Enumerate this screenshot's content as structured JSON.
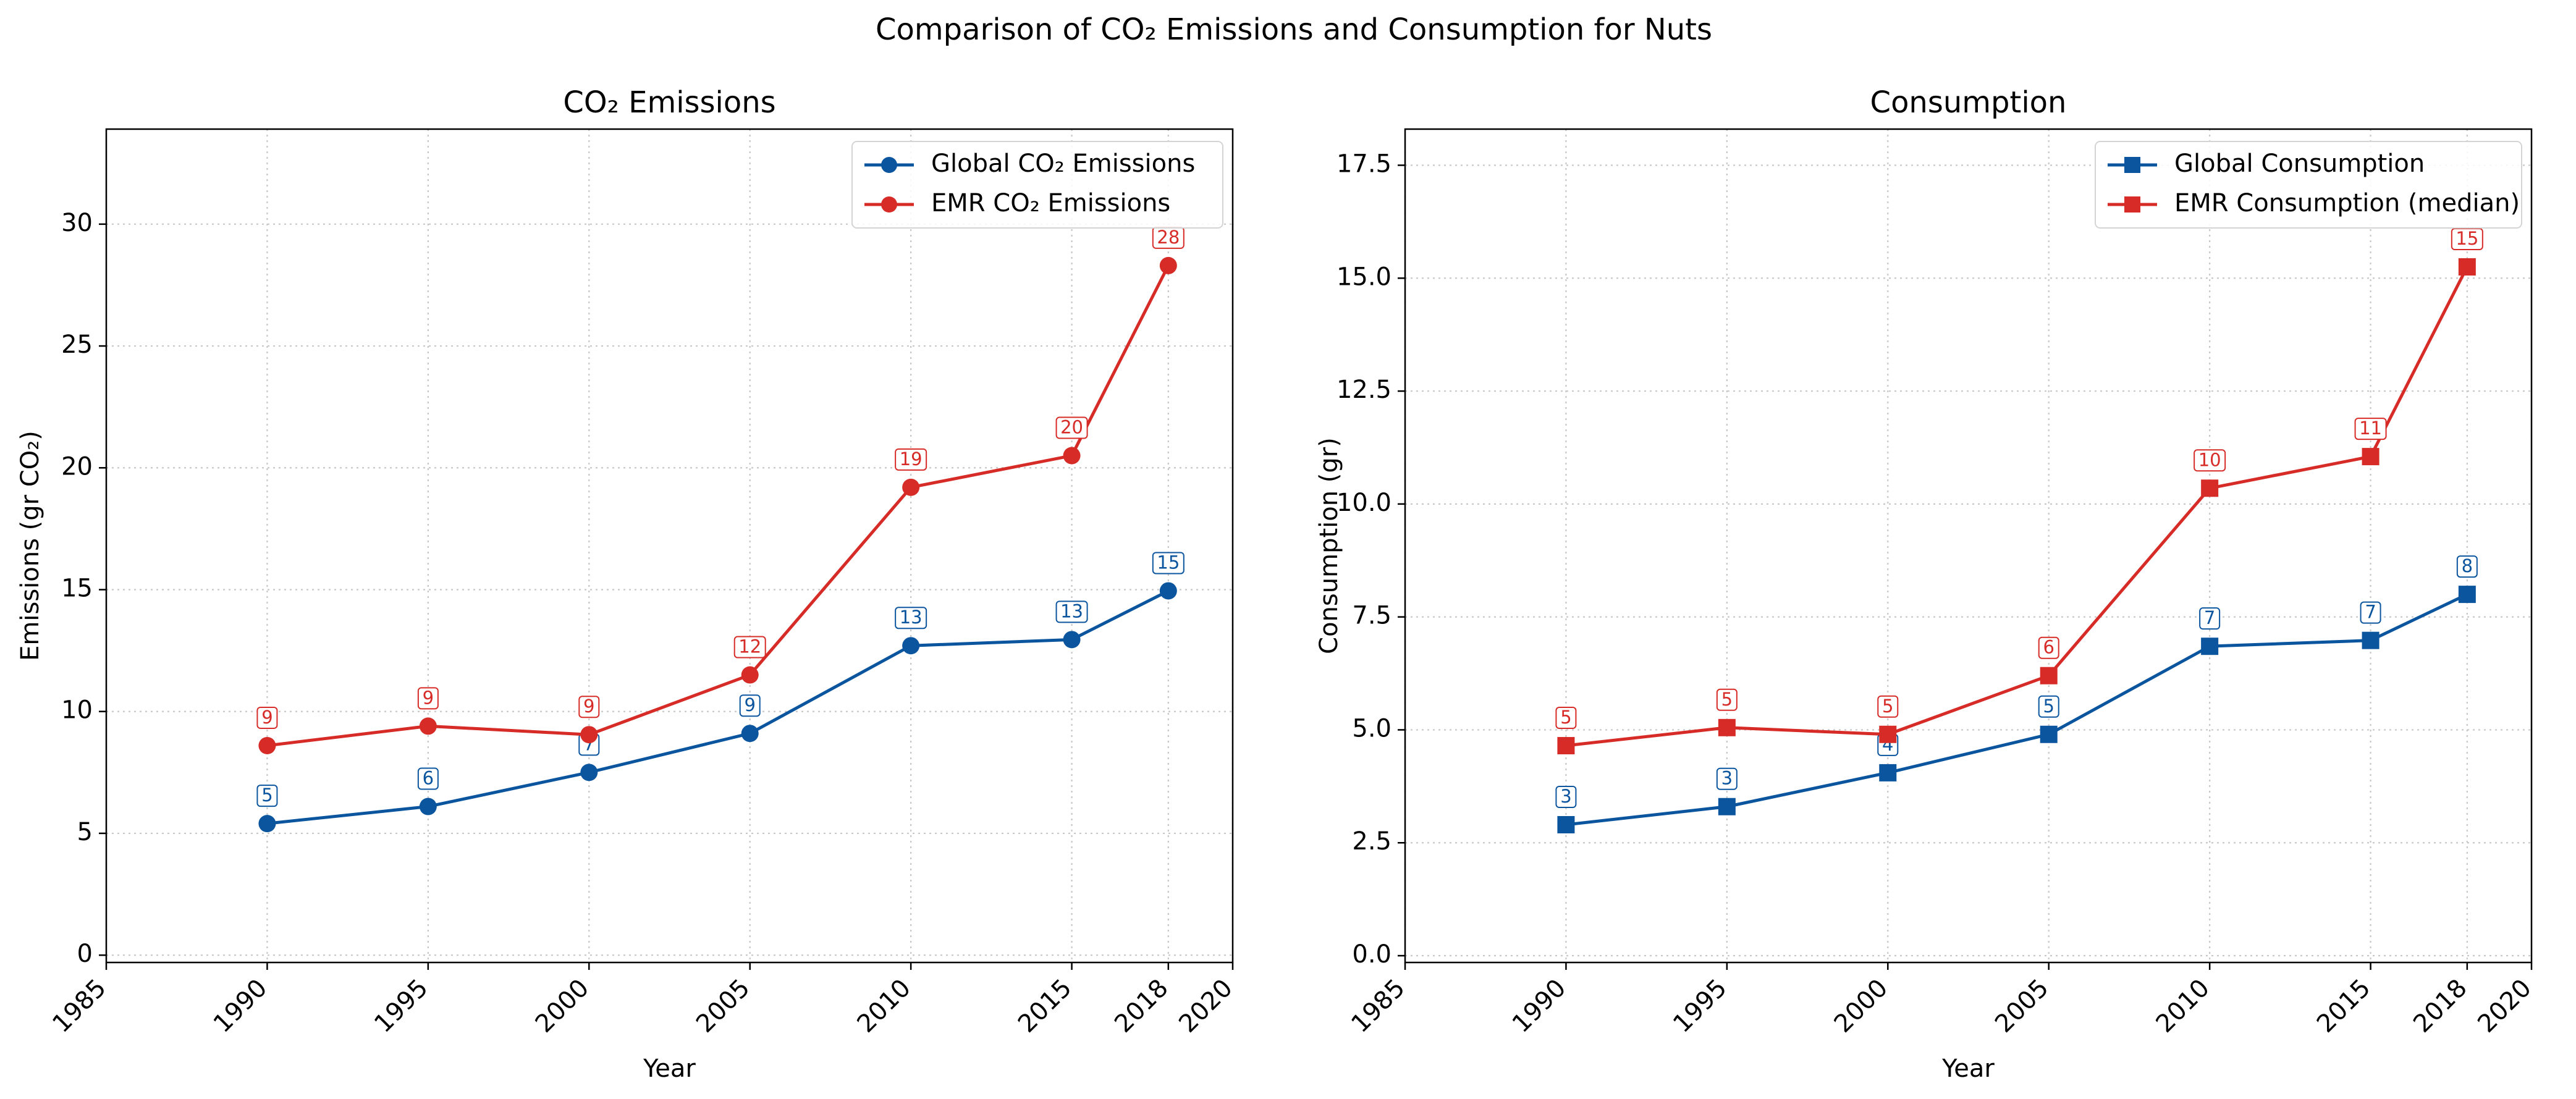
{
  "figure": {
    "suptitle": "Comparison of CO₂ Emissions and Consumption for Nuts"
  },
  "chart_data": [
    {
      "type": "line",
      "title": "CO₂ Emissions",
      "xlabel": "Year",
      "ylabel": "Emissions (gr CO₂)",
      "xlim": [
        1985,
        2020
      ],
      "ylim": [
        -0.3,
        33.9
      ],
      "xticks": [
        1985,
        1990,
        1995,
        2000,
        2005,
        2010,
        2015,
        2018,
        2020
      ],
      "yticks": [
        0,
        5,
        10,
        15,
        20,
        25,
        30
      ],
      "ytick_labels": [
        "0",
        "5",
        "10",
        "15",
        "20",
        "25",
        "30"
      ],
      "grid": true,
      "legend_position": "top-right",
      "marker": "circle",
      "x": [
        1990,
        1995,
        2000,
        2005,
        2010,
        2015,
        2018
      ],
      "series": [
        {
          "name": "Global CO₂ Emissions",
          "color": "#0b559f",
          "values": [
            5.4,
            6.1,
            7.5,
            9.1,
            12.7,
            12.95,
            14.95
          ],
          "labels": [
            "5",
            "6",
            "7",
            "9",
            "13",
            "13",
            "15"
          ]
        },
        {
          "name": "EMR CO₂ Emissions",
          "color": "#d62b26",
          "values": [
            8.6,
            9.4,
            9.05,
            11.5,
            19.2,
            20.5,
            28.3
          ],
          "labels": [
            "9",
            "9",
            "9",
            "12",
            "19",
            "20",
            "28"
          ]
        }
      ]
    },
    {
      "type": "line",
      "title": "Consumption",
      "xlabel": "Year",
      "ylabel": "Consumption (gr)",
      "xlim": [
        1985,
        2020
      ],
      "ylim": [
        -0.15,
        18.3
      ],
      "xticks": [
        1985,
        1990,
        1995,
        2000,
        2005,
        2010,
        2015,
        2018,
        2020
      ],
      "yticks": [
        0,
        2.5,
        5,
        7.5,
        10,
        12.5,
        15,
        17.5
      ],
      "ytick_labels": [
        "0.0",
        "2.5",
        "5.0",
        "7.5",
        "10.0",
        "12.5",
        "15.0",
        "17.5"
      ],
      "grid": true,
      "legend_position": "top-right",
      "marker": "square",
      "x": [
        1990,
        1995,
        2000,
        2005,
        2010,
        2015,
        2018
      ],
      "series": [
        {
          "name": "Global Consumption",
          "color": "#0b559f",
          "values": [
            2.9,
            3.3,
            4.05,
            4.9,
            6.85,
            6.98,
            8.0
          ],
          "labels": [
            "3",
            "3",
            "4",
            "5",
            "7",
            "7",
            "8"
          ]
        },
        {
          "name": "EMR Consumption (median)",
          "color": "#d62b26",
          "values": [
            4.65,
            5.05,
            4.9,
            6.2,
            10.35,
            11.05,
            15.25
          ],
          "labels": [
            "5",
            "5",
            "5",
            "6",
            "10",
            "11",
            "15"
          ]
        }
      ]
    }
  ]
}
